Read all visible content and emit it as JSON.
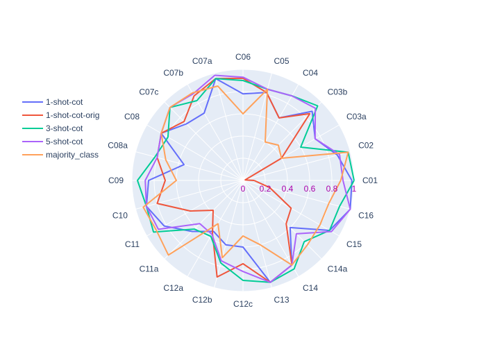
{
  "chart_data": {
    "type": "radar",
    "categories": [
      "C01",
      "C02",
      "C03a",
      "C03b",
      "C04",
      "C05",
      "C06",
      "C07a",
      "C07b",
      "C07c",
      "C08",
      "C08a",
      "C09",
      "C10",
      "C11",
      "C11a",
      "C12a",
      "C12b",
      "C12c",
      "C13",
      "C14",
      "C14a",
      "C15",
      "C16"
    ],
    "radial_range": [
      0,
      1
    ],
    "radial_ticks": [
      "0",
      "0.2",
      "0.4",
      "0.6",
      "0.8",
      "1"
    ],
    "radial_tick_values": [
      0,
      0.2,
      0.4,
      0.6,
      0.8,
      1
    ],
    "grid": true,
    "legend_position": "left",
    "series": [
      {
        "name": "1-shot-cot",
        "color": "#636efa",
        "values": [
          0.98,
          0.88,
          0.75,
          0.88,
          0.65,
          0.82,
          0.78,
          0.95,
          0.7,
          0.72,
          0.85,
          0.55,
          0.85,
          0.9,
          0.82,
          0.65,
          0.53,
          0.6,
          0.6,
          0.95,
          0.88,
          0.6,
          0.9,
          1.0
        ]
      },
      {
        "name": "1-shot-cot-orig",
        "color": "#ef553b",
        "values": [
          0.1,
          0.02,
          0.4,
          0.85,
          0.65,
          0.82,
          0.92,
          0.95,
          0.88,
          0.75,
          0.85,
          0.8,
          0.7,
          0.8,
          0.55,
          0.38,
          0.55,
          0.9,
          0.75,
          0.95,
          0.88,
          0.55,
          0.5,
          0.25
        ]
      },
      {
        "name": "3-shot-cot",
        "color": "#00cc96",
        "values": [
          1.0,
          0.98,
          0.6,
          0.95,
          0.88,
          0.85,
          0.9,
          0.95,
          0.83,
          0.93,
          0.78,
          0.82,
          0.95,
          0.9,
          0.93,
          0.62,
          0.58,
          0.77,
          0.9,
          0.95,
          0.92,
          0.78,
          0.9,
          0.9
        ]
      },
      {
        "name": "5-shot-cot",
        "color": "#ab63fa",
        "values": [
          0.9,
          0.9,
          0.75,
          0.92,
          0.88,
          0.85,
          0.93,
          0.98,
          0.9,
          0.93,
          0.85,
          0.8,
          0.88,
          0.9,
          0.88,
          0.55,
          0.56,
          0.75,
          0.82,
          0.95,
          0.88,
          0.68,
          0.92,
          1.0
        ]
      },
      {
        "name": "majority_class",
        "color": "#ffa15a",
        "values": [
          0.88,
          0.98,
          0.4,
          0.45,
          0.4,
          0.85,
          0.6,
          0.88,
          0.91,
          0.93,
          0.85,
          0.72,
          0.6,
          0.93,
          0.9,
          0.95,
          0.45,
          0.72,
          0.5,
          0.6,
          0.88,
          0.82,
          0.8,
          0.8
        ]
      }
    ]
  }
}
